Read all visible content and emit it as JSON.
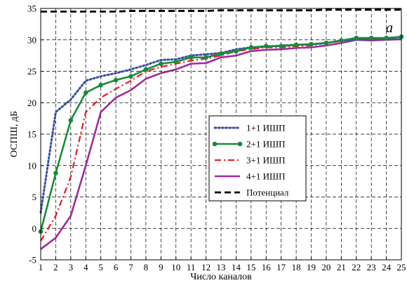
{
  "chart_data": {
    "type": "line",
    "panel_label": "a",
    "xlabel": "Число каналов",
    "ylabel": "ОСПШ, дБ",
    "x": [
      1,
      2,
      3,
      4,
      5,
      6,
      7,
      8,
      9,
      10,
      11,
      12,
      13,
      14,
      15,
      16,
      17,
      18,
      19,
      20,
      21,
      22,
      23,
      24,
      25
    ],
    "xlim": [
      1,
      25
    ],
    "ylim": [
      -5,
      35
    ],
    "yticks": [
      -5,
      0,
      5,
      10,
      15,
      20,
      25,
      30,
      35
    ],
    "grid": true,
    "legend_position": "center-right",
    "series": [
      {
        "name": "1+1 ИШП",
        "color": "#3b4fa3",
        "style": "dotted",
        "values": [
          2.5,
          18.5,
          20.5,
          23.5,
          24.2,
          24.7,
          25.3,
          26.0,
          26.8,
          26.9,
          27.5,
          27.7,
          27.9,
          28.5,
          28.8,
          28.9,
          29.1,
          29.2,
          29.3,
          29.5,
          29.9,
          30.0,
          30.1,
          30.1,
          30.1
        ]
      },
      {
        "name": "2+1 ИШП",
        "color": "#1a8a3a",
        "style": "solid-markers",
        "values": [
          -0.5,
          8.8,
          17.2,
          21.6,
          22.8,
          23.6,
          24.2,
          25.3,
          26.2,
          26.5,
          27.2,
          27.2,
          27.8,
          28.2,
          28.8,
          29.0,
          29.0,
          29.2,
          29.3,
          29.5,
          29.9,
          30.3,
          30.3,
          30.3,
          30.5
        ]
      },
      {
        "name": "3+1 ИШП",
        "color": "#e8202a",
        "style": "dashdot",
        "values": [
          -2.0,
          2.0,
          8.2,
          18.5,
          20.8,
          22.2,
          23.5,
          25.0,
          25.7,
          26.2,
          26.7,
          27.0,
          27.5,
          28.2,
          28.5,
          28.8,
          28.8,
          29.0,
          29.1,
          29.5,
          29.8,
          30.2,
          30.2,
          30.2,
          30.3
        ]
      },
      {
        "name": "4+1 ИШП",
        "color": "#a02a9a",
        "style": "solid",
        "values": [
          -3.3,
          -1.5,
          2.0,
          10.0,
          18.5,
          20.8,
          22.0,
          23.8,
          24.7,
          25.3,
          26.2,
          26.3,
          27.2,
          27.5,
          28.2,
          28.4,
          28.5,
          28.7,
          28.8,
          29.1,
          29.5,
          30.0,
          29.9,
          30.0,
          30.1
        ]
      },
      {
        "name": "Потенциал",
        "color": "#000000",
        "style": "dashed-bold",
        "values": [
          34.5,
          34.5,
          34.5,
          34.5,
          34.5,
          34.5,
          34.6,
          34.6,
          34.6,
          34.6,
          34.6,
          34.6,
          34.7,
          34.7,
          34.7,
          34.7,
          34.7,
          34.7,
          34.7,
          34.8,
          34.8,
          34.8,
          34.8,
          34.8,
          34.8
        ]
      }
    ]
  }
}
